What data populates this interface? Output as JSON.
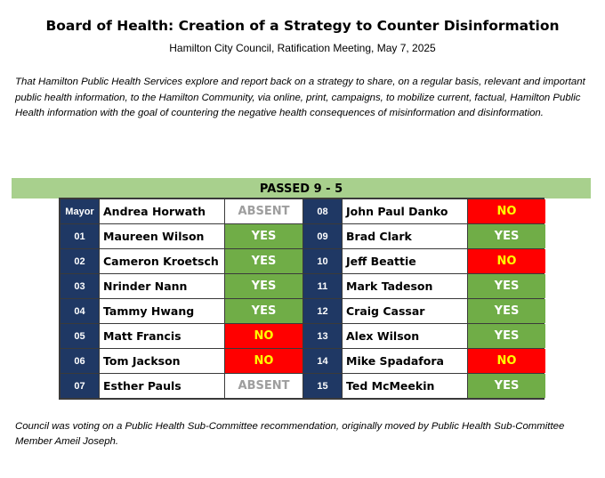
{
  "header": {
    "title": "Board of Health: Creation of a Strategy to Counter Disinformation",
    "subtitle": "Hamilton City Council, Ratification Meeting, May 7, 2025"
  },
  "motion": "That Hamilton Public Health Services explore and report back on a strategy to share, on a regular basis, relevant and important public health information, to the Hamilton Community, via online, print, campaigns, to mobilize current, factual, Hamilton Public Health information with the goal of countering the negative health consequences of misinformation and disinformation.",
  "result": "PASSED 9 - 5",
  "colors": {
    "result_bar": "#a8d08d",
    "number_cell": "#1f3864",
    "yes": "#70ad47",
    "no": "#ff0000",
    "no_text": "#ffff00",
    "absent_text": "#9e9e9e"
  },
  "votes": [
    {
      "seat": "Mayor",
      "name": "Andrea Horwath",
      "vote": "ABSENT"
    },
    {
      "seat": "08",
      "name": "John Paul Danko",
      "vote": "NO"
    },
    {
      "seat": "01",
      "name": "Maureen Wilson",
      "vote": "YES"
    },
    {
      "seat": "09",
      "name": "Brad Clark",
      "vote": "YES"
    },
    {
      "seat": "02",
      "name": "Cameron Kroetsch",
      "vote": "YES"
    },
    {
      "seat": "10",
      "name": "Jeff Beattie",
      "vote": "NO"
    },
    {
      "seat": "03",
      "name": "Nrinder Nann",
      "vote": "YES"
    },
    {
      "seat": "11",
      "name": "Mark Tadeson",
      "vote": "YES"
    },
    {
      "seat": "04",
      "name": "Tammy Hwang",
      "vote": "YES"
    },
    {
      "seat": "12",
      "name": "Craig Cassar",
      "vote": "YES"
    },
    {
      "seat": "05",
      "name": "Matt Francis",
      "vote": "NO"
    },
    {
      "seat": "13",
      "name": "Alex Wilson",
      "vote": "YES"
    },
    {
      "seat": "06",
      "name": "Tom Jackson",
      "vote": "NO"
    },
    {
      "seat": "14",
      "name": "Mike Spadafora",
      "vote": "NO"
    },
    {
      "seat": "07",
      "name": "Esther Pauls",
      "vote": "ABSENT"
    },
    {
      "seat": "15",
      "name": "Ted McMeekin",
      "vote": "YES"
    }
  ],
  "footer": "Council was voting on a Public Health Sub-Committee recommendation, originally moved by Public Health Sub-Committee Member Ameil Joseph."
}
